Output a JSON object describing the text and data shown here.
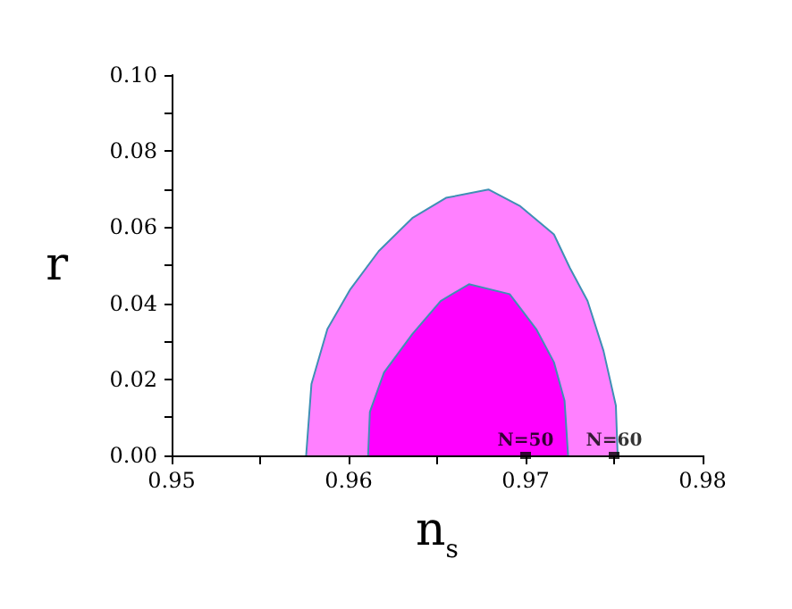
{
  "chart_data": {
    "type": "area",
    "xlabel": "n$_{s}$",
    "ylabel": "r",
    "series": [
      {
        "color": "#ff80ff",
        "x": [
          0.9576,
          0.9579,
          0.9588,
          0.9601,
          0.9617,
          0.9636,
          0.9655,
          0.9679,
          0.9697,
          0.9716,
          0.9725,
          0.9735,
          0.9744,
          0.9751,
          0.9752
        ],
        "values": [
          0,
          0.0188,
          0.0332,
          0.0437,
          0.0537,
          0.0624,
          0.0677,
          0.0699,
          0.0655,
          0.0581,
          0.0493,
          0.0406,
          0.0275,
          0.0131,
          0
        ]
      },
      {
        "color": "#ff00ff",
        "x": [
          0.9611,
          0.9612,
          0.962,
          0.9636,
          0.9652,
          0.9668,
          0.9691,
          0.9706,
          0.9716,
          0.9722,
          0.9724
        ],
        "values": [
          0,
          0.0114,
          0.0218,
          0.0319,
          0.0406,
          0.045,
          0.0424,
          0.0332,
          0.0245,
          0.0144,
          0
        ]
      },
      {
        "type": "scatter",
        "marker": "square",
        "color": "#000000",
        "x": [
          0.97,
          0.975
        ],
        "values": [
          0,
          0
        ]
      }
    ],
    "annotations": [
      {
        "text": "N=50",
        "x": 0.97,
        "y": 0
      },
      {
        "text": "N=60",
        "x": 0.975,
        "y": 0
      }
    ],
    "xlim": [
      0.95,
      0.98
    ],
    "ylim": [
      0,
      0.1
    ],
    "xticks": [
      0.95,
      {
        "value": 0.955,
        "label": null
      },
      0.96,
      {
        "value": 0.965,
        "label": null
      },
      0.97,
      {
        "value": 0.975,
        "label": null
      },
      0.98
    ],
    "yticks": [
      {
        "value": 0,
        "label": "0.00"
      },
      {
        "value": 0.01,
        "label": null
      },
      0.02,
      {
        "value": 0.03,
        "label": null
      },
      0.04,
      {
        "value": 0.05,
        "label": null
      },
      0.06,
      {
        "value": 0.07,
        "label": null
      },
      0.08,
      {
        "value": 0.09,
        "label": null
      },
      {
        "value": 0.1,
        "label": "0.10"
      }
    ],
    "grid": false
  }
}
